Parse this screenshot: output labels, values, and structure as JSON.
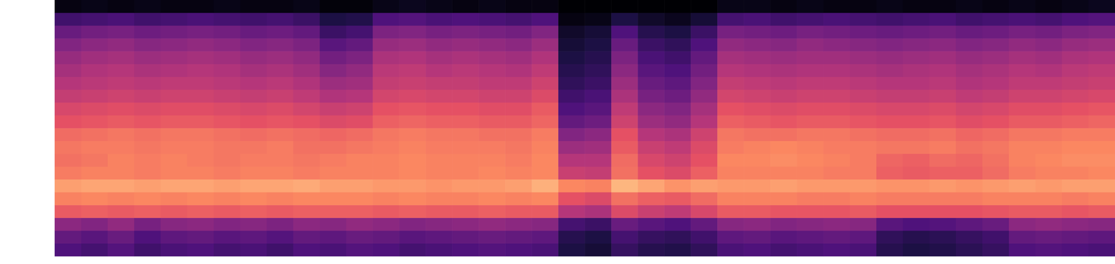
{
  "chart_data": {
    "type": "heatmap",
    "tick_labels": false,
    "zlim": [
      -80,
      0
    ],
    "z": [
      [
        -60,
        -62,
        -59,
        -63,
        -61,
        -60,
        -62,
        -61,
        -63,
        -60,
        -61,
        -59,
        -60,
        -62,
        -61,
        -60,
        -59,
        -60,
        -61,
        -70,
        -72,
        -65,
        -68,
        -69,
        -66,
        -61,
        -60,
        -62,
        -61,
        -60,
        -61,
        -68,
        -70,
        -69,
        -67,
        -65,
        -60,
        -59,
        -60,
        -61
      ],
      [
        -56,
        -58,
        -55,
        -60,
        -57,
        -56,
        -58,
        -57,
        -59,
        -56,
        -57,
        -55,
        -56,
        -58,
        -57,
        -56,
        -55,
        -56,
        -57,
        -68,
        -70,
        -62,
        -65,
        -66,
        -63,
        -57,
        -56,
        -58,
        -57,
        -56,
        -57,
        -66,
        -68,
        -67,
        -65,
        -63,
        -56,
        -55,
        -56,
        -57
      ],
      [
        -48,
        -50,
        -47,
        -52,
        -49,
        -48,
        -50,
        -49,
        -51,
        -48,
        -49,
        -47,
        -48,
        -50,
        -49,
        -48,
        -47,
        -48,
        -49,
        -62,
        -64,
        -55,
        -58,
        -60,
        -56,
        -49,
        -48,
        -50,
        -49,
        -48,
        -49,
        -58,
        -60,
        -59,
        -57,
        -55,
        -48,
        -47,
        -48,
        -49
      ],
      [
        -28,
        -27,
        -28,
        -27,
        -28,
        -27,
        -28,
        -27,
        -28,
        -27,
        -27,
        -27,
        -28,
        -27,
        -28,
        -28,
        -27,
        -28,
        -28,
        -40,
        -42,
        -32,
        -36,
        -38,
        -33,
        -28,
        -28,
        -29,
        -29,
        -29,
        -28,
        -30,
        -30,
        -30,
        -30,
        -29,
        -28,
        -28,
        -29,
        -28
      ],
      [
        -21,
        -20,
        -21,
        -20,
        -21,
        -20,
        -21,
        -20,
        -21,
        -20,
        -20,
        -20,
        -21,
        -20,
        -21,
        -21,
        -20,
        -21,
        -20,
        -30,
        -32,
        -24,
        -27,
        -28,
        -25,
        -21,
        -21,
        -21,
        -22,
        -22,
        -21,
        -22,
        -22,
        -22,
        -22,
        -21,
        -21,
        -21,
        -22,
        -21
      ],
      [
        -16,
        -15,
        -15,
        -16,
        -15,
        -15,
        -16,
        -15,
        -15,
        -14,
        -16,
        -16,
        -17,
        -17,
        -18,
        -17,
        -17,
        -16,
        -13,
        -20,
        -21,
        -12,
        -15,
        -18,
        -16,
        -17,
        -17,
        -16,
        -17,
        -17,
        -17,
        -18,
        -18,
        -17,
        -18,
        -17,
        -16,
        -17,
        -16,
        -16
      ],
      [
        -22,
        -21,
        -21,
        -22,
        -21,
        -21,
        -22,
        -21,
        -21,
        -22,
        -21,
        -21,
        -21,
        -20,
        -21,
        -21,
        -20,
        -21,
        -20,
        -36,
        -37,
        -24,
        -30,
        -32,
        -27,
        -21,
        -21,
        -21,
        -21,
        -22,
        -22,
        -27,
        -28,
        -27,
        -27,
        -25,
        -22,
        -21,
        -21,
        -20
      ],
      [
        -24,
        -23,
        -21,
        -22,
        -21,
        -22,
        -23,
        -22,
        -22,
        -23,
        -22,
        -21,
        -21,
        -20,
        -21,
        -21,
        -21,
        -22,
        -20,
        -40,
        -40,
        -25,
        -33,
        -35,
        -30,
        -20,
        -20,
        -19,
        -20,
        -21,
        -22,
        -26,
        -27,
        -25,
        -26,
        -24,
        -21,
        -20,
        -19,
        -19
      ],
      [
        -23,
        -22,
        -22,
        -23,
        -22,
        -22,
        -23,
        -23,
        -22,
        -24,
        -24,
        -23,
        -22,
        -21,
        -22,
        -22,
        -22,
        -23,
        -21,
        -45,
        -44,
        -28,
        -36,
        -38,
        -32,
        -22,
        -21,
        -20,
        -21,
        -22,
        -22,
        -23,
        -23,
        -22,
        -24,
        -23,
        -21,
        -21,
        -20,
        -20
      ],
      [
        -25,
        -24,
        -23,
        -24,
        -23,
        -23,
        -24,
        -25,
        -24,
        -25,
        -26,
        -25,
        -23,
        -22,
        -23,
        -23,
        -24,
        -24,
        -22,
        -50,
        -48,
        -30,
        -40,
        -42,
        -35,
        -23,
        -24,
        -24,
        -23,
        -23,
        -24,
        -25,
        -25,
        -24,
        -26,
        -25,
        -23,
        -23,
        -22,
        -22
      ],
      [
        -30,
        -29,
        -28,
        -29,
        -28,
        -28,
        -29,
        -30,
        -29,
        -30,
        -32,
        -31,
        -27,
        -26,
        -27,
        -27,
        -28,
        -28,
        -26,
        -56,
        -54,
        -35,
        -45,
        -47,
        -40,
        -27,
        -28,
        -29,
        -28,
        -28,
        -29,
        -30,
        -30,
        -29,
        -31,
        -30,
        -28,
        -28,
        -27,
        -26
      ],
      [
        -33,
        -32,
        -31,
        -32,
        -31,
        -31,
        -32,
        -33,
        -32,
        -34,
        -36,
        -35,
        -30,
        -29,
        -30,
        -30,
        -31,
        -31,
        -28,
        -60,
        -58,
        -38,
        -48,
        -50,
        -43,
        -30,
        -31,
        -32,
        -31,
        -31,
        -32,
        -33,
        -33,
        -32,
        -34,
        -33,
        -31,
        -31,
        -30,
        -29
      ],
      [
        -37,
        -36,
        -35,
        -36,
        -35,
        -35,
        -36,
        -37,
        -36,
        -38,
        -41,
        -40,
        -34,
        -33,
        -34,
        -34,
        -35,
        -35,
        -32,
        -63,
        -61,
        -42,
        -52,
        -54,
        -47,
        -34,
        -35,
        -36,
        -35,
        -35,
        -36,
        -37,
        -37,
        -36,
        -38,
        -37,
        -35,
        -35,
        -34,
        -33
      ],
      [
        -40,
        -39,
        -38,
        -39,
        -38,
        -38,
        -39,
        -40,
        -39,
        -41,
        -45,
        -44,
        -37,
        -36,
        -37,
        -37,
        -38,
        -38,
        -35,
        -66,
        -64,
        -45,
        -55,
        -57,
        -50,
        -37,
        -38,
        -39,
        -38,
        -38,
        -39,
        -40,
        -40,
        -39,
        -41,
        -40,
        -38,
        -38,
        -37,
        -36
      ],
      [
        -43,
        -41,
        -40,
        -42,
        -41,
        -40,
        -41,
        -43,
        -42,
        -44,
        -49,
        -47,
        -39,
        -38,
        -40,
        -39,
        -40,
        -41,
        -38,
        -68,
        -66,
        -48,
        -58,
        -60,
        -53,
        -40,
        -41,
        -42,
        -41,
        -41,
        -42,
        -43,
        -42,
        -41,
        -43,
        -42,
        -40,
        -41,
        -39,
        -38
      ],
      [
        -46,
        -44,
        -43,
        -45,
        -44,
        -43,
        -44,
        -46,
        -45,
        -47,
        -53,
        -51,
        -42,
        -41,
        -43,
        -42,
        -43,
        -44,
        -41,
        -70,
        -68,
        -51,
        -61,
        -63,
        -56,
        -43,
        -44,
        -45,
        -44,
        -44,
        -45,
        -46,
        -45,
        -44,
        -46,
        -45,
        -43,
        -44,
        -42,
        -41
      ],
      [
        -50,
        -48,
        -47,
        -49,
        -48,
        -47,
        -48,
        -50,
        -49,
        -51,
        -58,
        -56,
        -46,
        -45,
        -47,
        -46,
        -47,
        -48,
        -45,
        -72,
        -70,
        -55,
        -64,
        -66,
        -60,
        -47,
        -48,
        -49,
        -47,
        -48,
        -49,
        -50,
        -49,
        -48,
        -50,
        -49,
        -47,
        -48,
        -46,
        -45
      ],
      [
        -55,
        -53,
        -52,
        -54,
        -53,
        -52,
        -53,
        -55,
        -54,
        -56,
        -64,
        -62,
        -51,
        -50,
        -52,
        -51,
        -52,
        -53,
        -50,
        -74,
        -72,
        -60,
        -68,
        -70,
        -64,
        -52,
        -53,
        -54,
        -52,
        -53,
        -54,
        -55,
        -54,
        -53,
        -55,
        -54,
        -52,
        -53,
        -51,
        -50
      ],
      [
        -63,
        -62,
        -61,
        -63,
        -62,
        -61,
        -62,
        -63,
        -62,
        -64,
        -70,
        -69,
        -60,
        -59,
        -61,
        -60,
        -61,
        -62,
        -60,
        -78,
        -77,
        -70,
        -74,
        -76,
        -72,
        -62,
        -61,
        -63,
        -62,
        -61,
        -62,
        -63,
        -62,
        -61,
        -63,
        -62,
        -61,
        -62,
        -60,
        -59
      ],
      [
        -78,
        -77,
        -78,
        -77,
        -78,
        -78,
        -77,
        -78,
        -78,
        -77,
        -79,
        -79,
        -77,
        -76,
        -77,
        -78,
        -77,
        -78,
        -78,
        -80,
        -80,
        -80,
        -80,
        -80,
        -80,
        -77,
        -77,
        -78,
        -77,
        -78,
        -78,
        -77,
        -78,
        -78,
        -77,
        -78,
        -77,
        -78,
        -77,
        -76
      ]
    ]
  }
}
